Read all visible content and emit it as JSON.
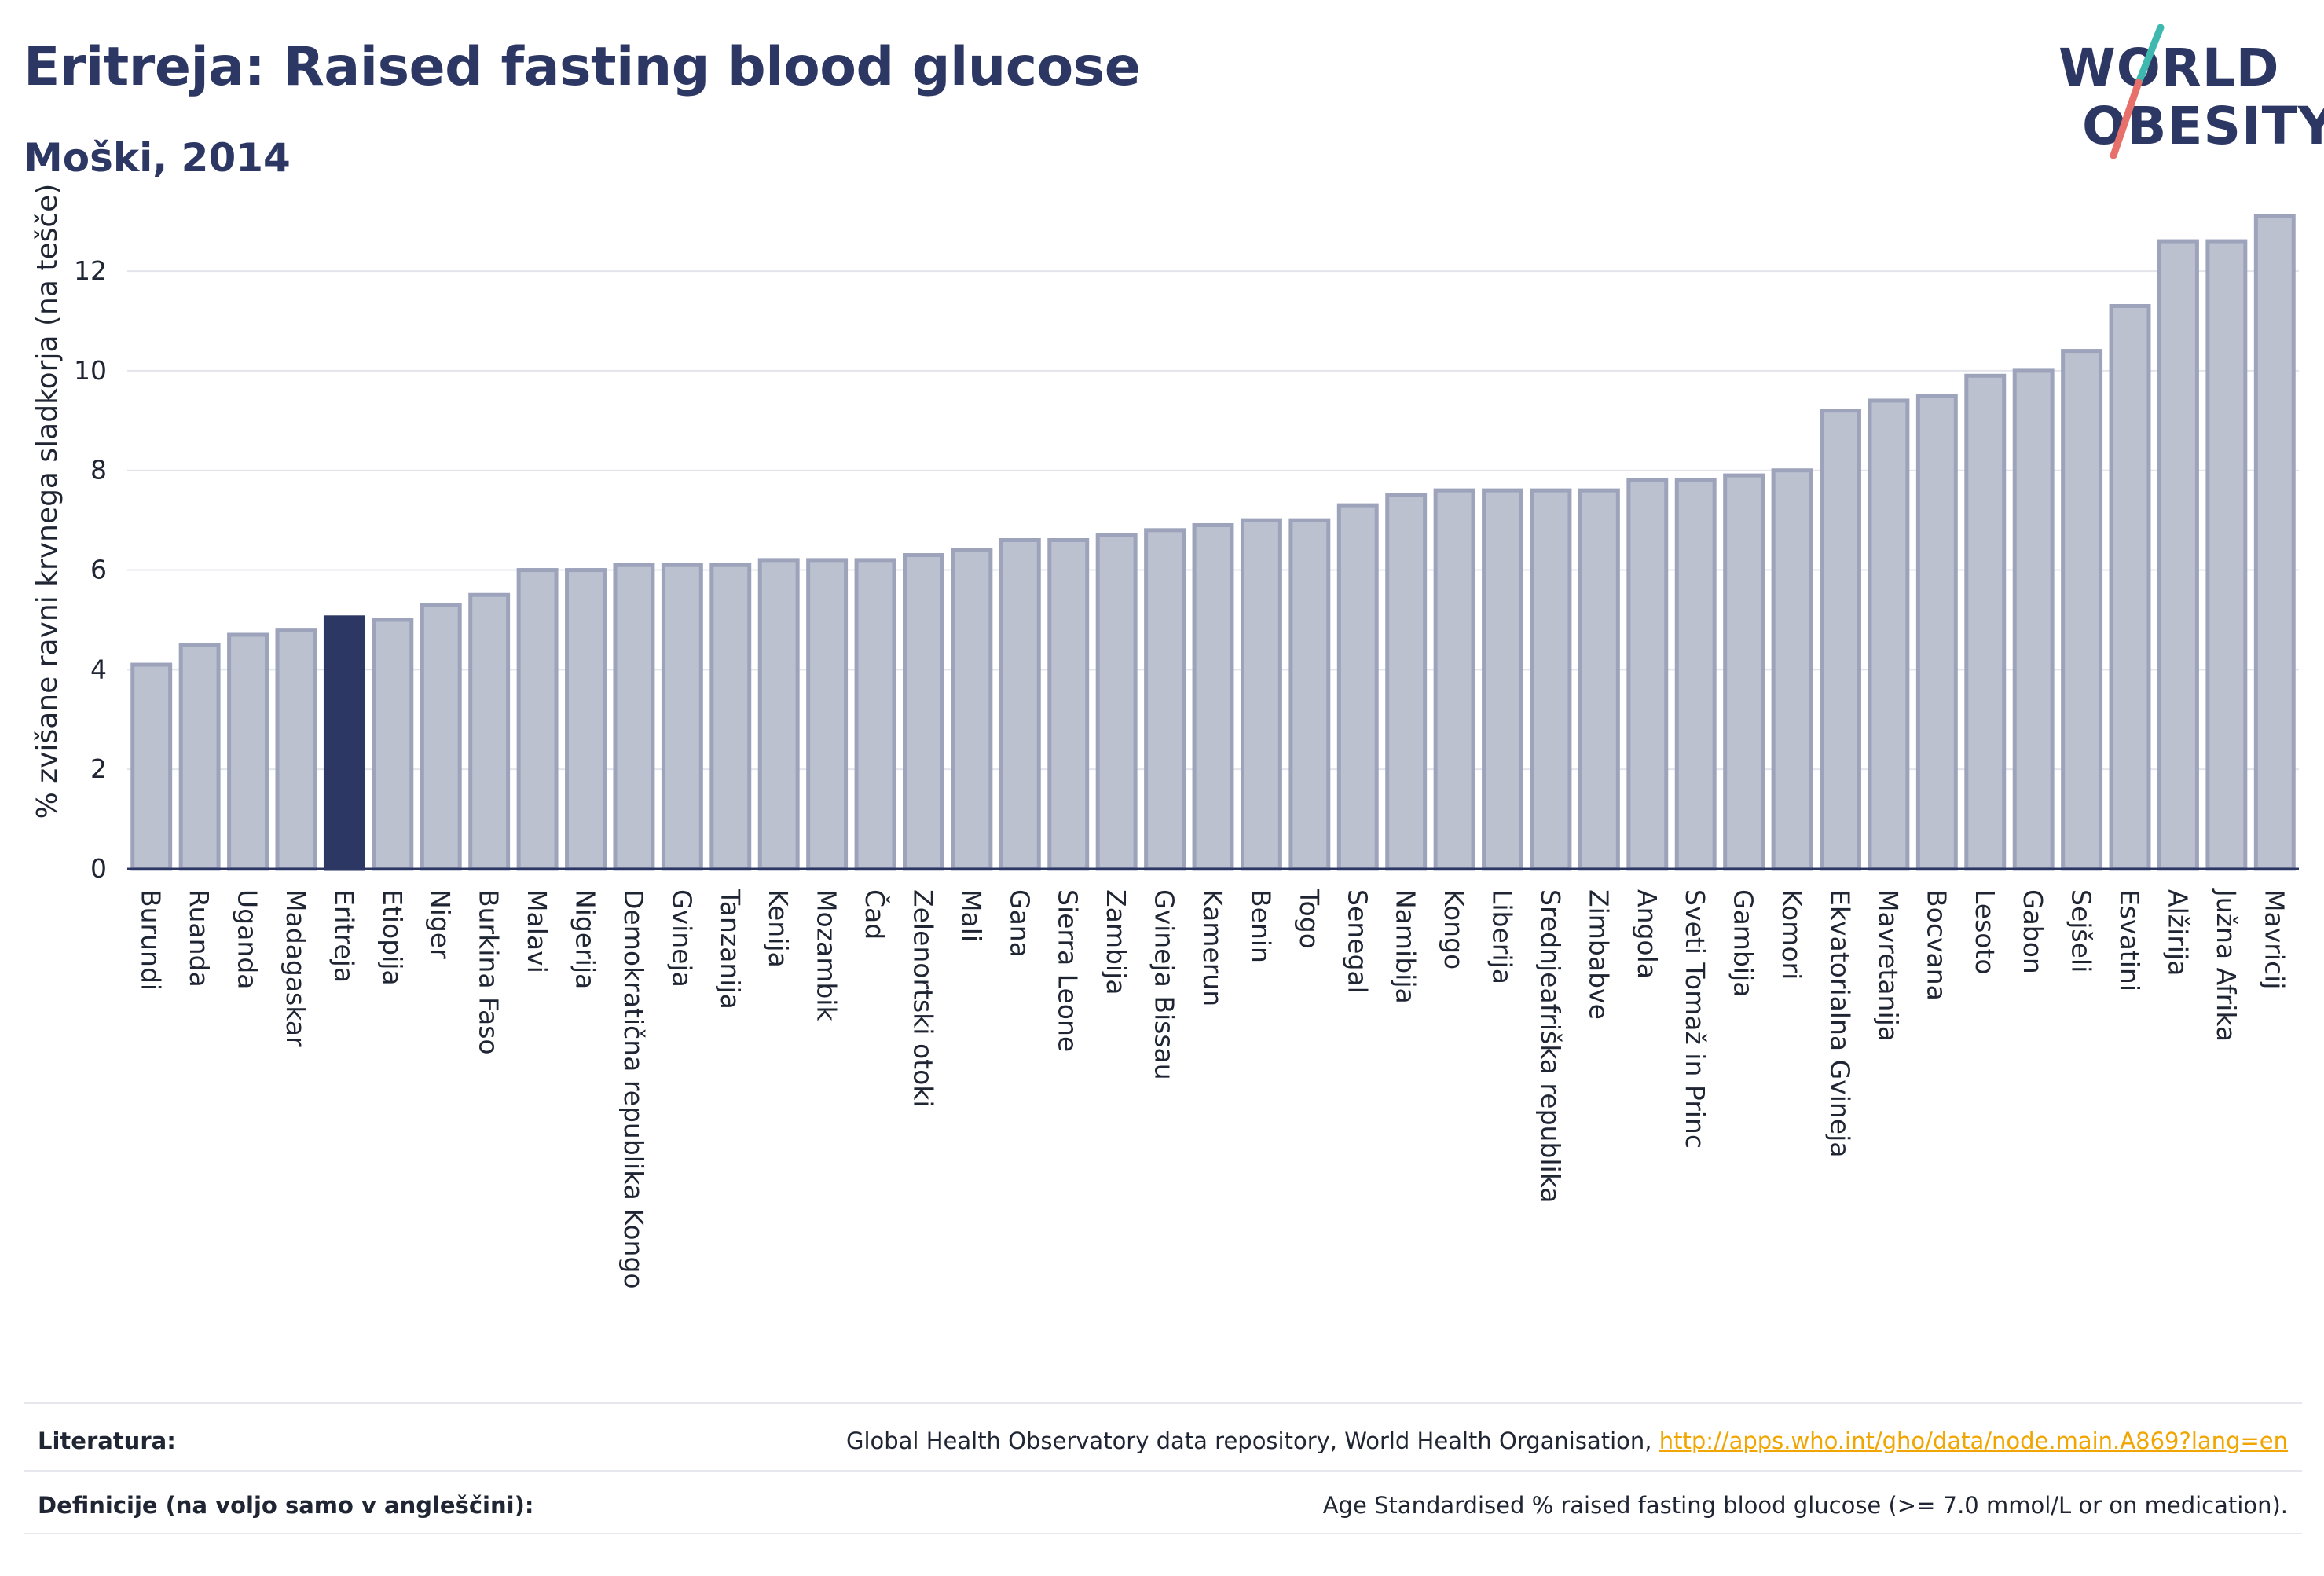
{
  "header": {
    "title": "Eritreja: Raised fasting blood glucose",
    "subtitle": "Moški, 2014"
  },
  "logo": {
    "line1": "WORLD",
    "line2": "OBESITY"
  },
  "chart_data": {
    "type": "bar",
    "ylabel": "% zvišane ravni krvnega sladkorja (na tešče)",
    "xlabel": "",
    "ylim": [
      0,
      13.5
    ],
    "yticks": [
      0,
      2,
      4,
      6,
      8,
      10,
      12
    ],
    "grid": true,
    "highlight": "Eritreja",
    "colors": {
      "bar": "#bcc1d0",
      "bar_edge": "#9ca3ba",
      "highlight": "#2c3764",
      "axis": "#2c3764",
      "grid": "#e3e5eb"
    },
    "categories": [
      "Burundi",
      "Ruanda",
      "Uganda",
      "Madagaskar",
      "Eritreja",
      "Etiopija",
      "Niger",
      "Burkina Faso",
      "Malavi",
      "Nigerija",
      "Demokratična republika Kongo",
      "Gvineja",
      "Tanzanija",
      "Kenija",
      "Mozambik",
      "Čad",
      "Zelenortski otoki",
      "Mali",
      "Gana",
      "Sierra Leone",
      "Zambija",
      "Gvineja Bissau",
      "Kamerun",
      "Benin",
      "Togo",
      "Senegal",
      "Namibija",
      "Kongo",
      "Liberija",
      "Srednjeafriška republika",
      "Zimbabve",
      "Angola",
      "Sveti Tomaž in Princ",
      "Gambija",
      "Komori",
      "Ekvatorialna Gvineja",
      "Mavretanija",
      "Bocvana",
      "Lesoto",
      "Gabon",
      "Sejšeli",
      "Esvatini",
      "Alžirija",
      "Južna Afrika",
      "Mavricij"
    ],
    "values": [
      4.1,
      4.5,
      4.7,
      4.8,
      5.05,
      5.0,
      5.3,
      5.5,
      6.0,
      6.0,
      6.1,
      6.1,
      6.1,
      6.2,
      6.2,
      6.2,
      6.3,
      6.4,
      6.6,
      6.6,
      6.7,
      6.8,
      6.9,
      7.0,
      7.0,
      7.3,
      7.5,
      7.6,
      7.6,
      7.6,
      7.6,
      7.8,
      7.8,
      7.9,
      8.0,
      9.2,
      9.4,
      9.5,
      9.9,
      10.0,
      10.4,
      11.3,
      12.6,
      12.6,
      13.1
    ]
  },
  "footer": {
    "references_label": "Literatura:",
    "references_text": "Global Health Observatory data repository, World Health Organisation, ",
    "references_link": "http://apps.who.int/gho/data/node.main.A869?lang=en",
    "definitions_label": "Definicije (na voljo samo v angleščini):",
    "definitions_text": "Age Standardised % raised fasting blood glucose (>= 7.0 mmol/L or on medication)."
  }
}
